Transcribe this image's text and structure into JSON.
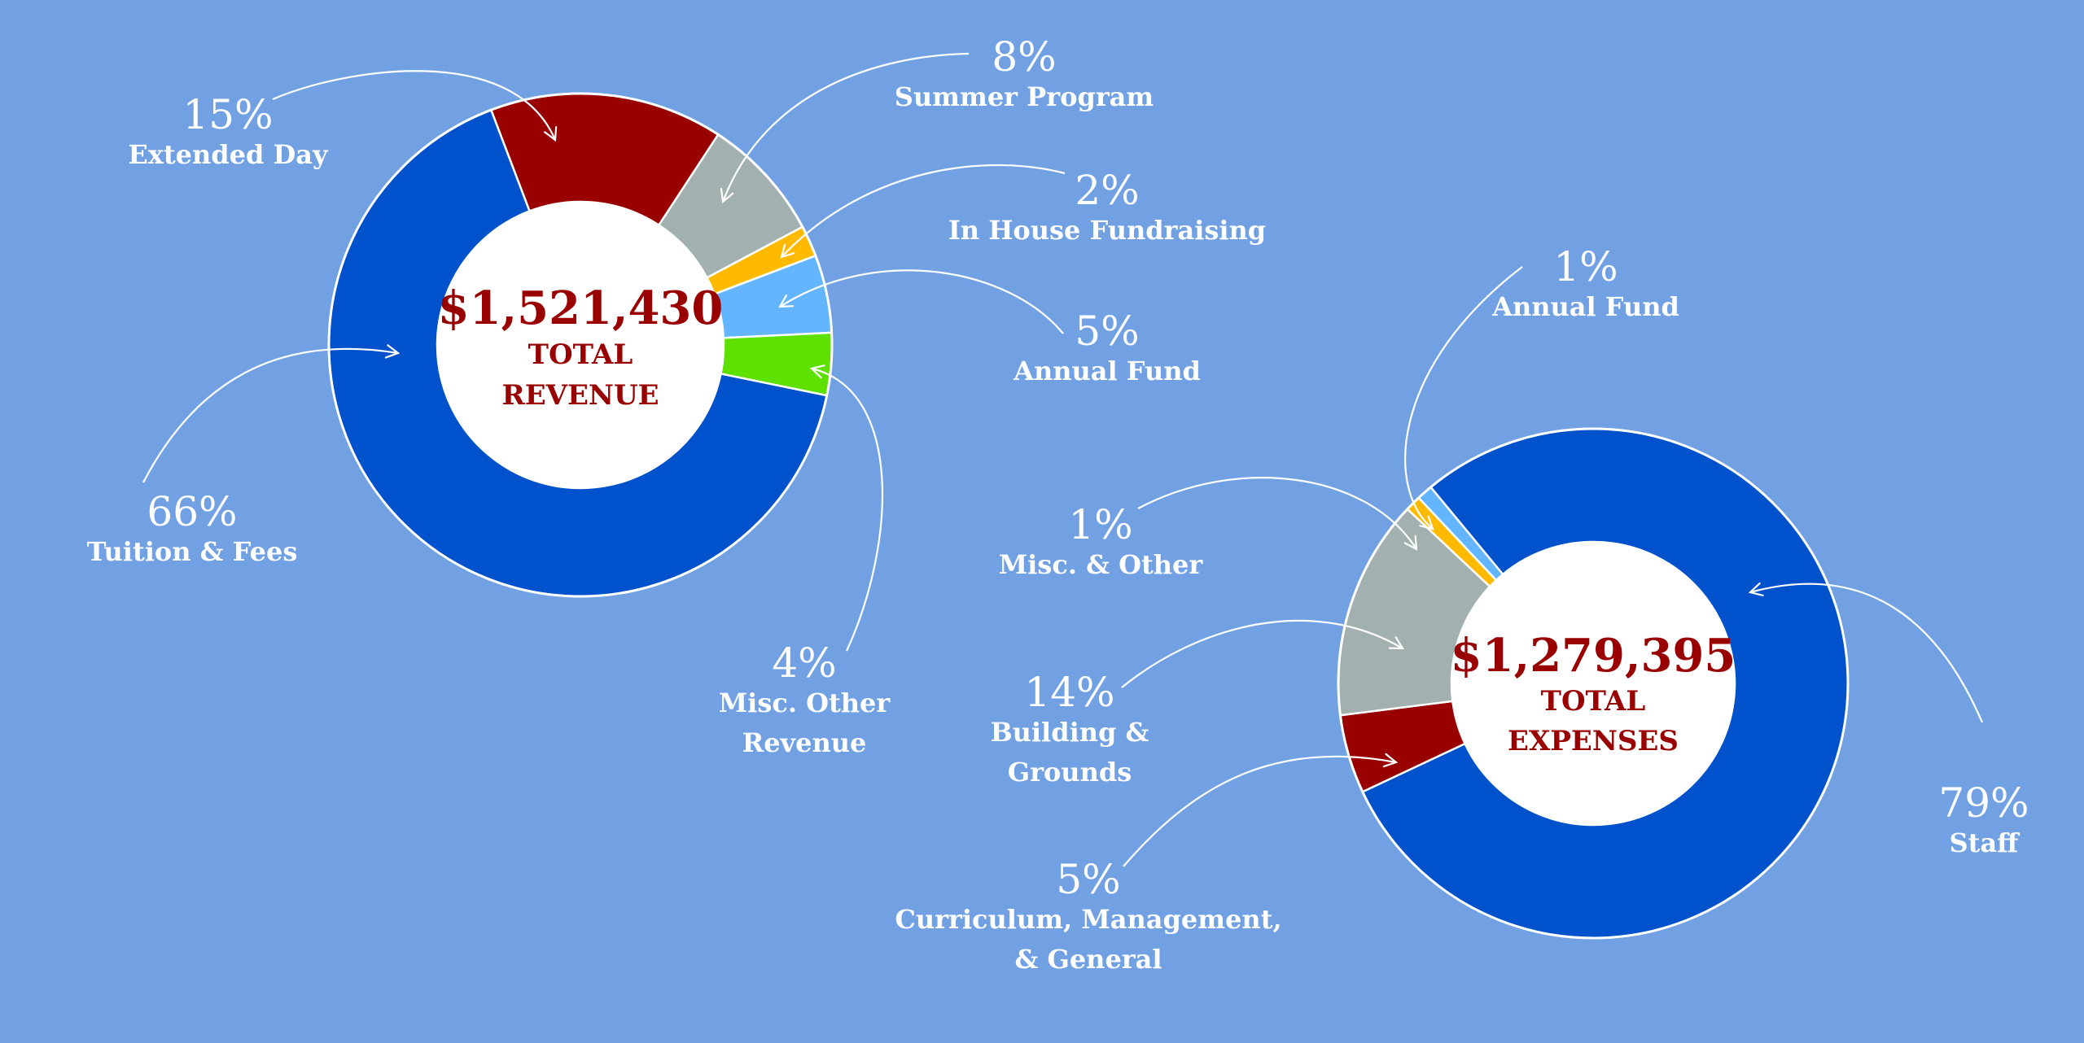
{
  "chart_data": [
    {
      "type": "pie",
      "center_value": "$1,521,430",
      "center_label": [
        "TOTAL",
        "REVENUE"
      ],
      "slices": [
        {
          "label": "Extended Day",
          "label_lines": [
            "Extended Day"
          ],
          "percent_label": "15%",
          "value": 15,
          "color": "#990000"
        },
        {
          "label": "Summer Program",
          "label_lines": [
            "Summer Program"
          ],
          "percent_label": "8%",
          "value": 8,
          "color": "#a2b1b0"
        },
        {
          "label": "In House Fundraising",
          "label_lines": [
            "In House Fundraising"
          ],
          "percent_label": "2%",
          "value": 2,
          "color": "#ffba00"
        },
        {
          "label": "Annual Fund",
          "label_lines": [
            "Annual Fund"
          ],
          "percent_label": "5%",
          "value": 5,
          "color": "#63b5ff"
        },
        {
          "label": "Misc. Other Revenue",
          "label_lines": [
            "Misc. Other",
            "Revenue"
          ],
          "percent_label": "4%",
          "value": 4,
          "color": "#5ee000"
        },
        {
          "label": "Tuition & Fees",
          "label_lines": [
            "Tuition & Fees"
          ],
          "percent_label": "66%",
          "value": 66,
          "color": "#0052cc"
        }
      ]
    },
    {
      "type": "pie",
      "center_value": "$1,279,395",
      "center_label": [
        "TOTAL",
        "EXPENSES"
      ],
      "slices": [
        {
          "label": "Staff",
          "label_lines": [
            "Staff"
          ],
          "percent_label": "79%",
          "value": 79,
          "color": "#0052cc"
        },
        {
          "label": "Curriculum, Management, & General",
          "label_lines": [
            "Curriculum, Management,",
            "& General"
          ],
          "percent_label": "5%",
          "value": 5,
          "color": "#990000"
        },
        {
          "label": "Building & Grounds",
          "label_lines": [
            "Building &",
            "Grounds"
          ],
          "percent_label": "14%",
          "value": 14,
          "color": "#a2b1b0"
        },
        {
          "label": "Misc. & Other",
          "label_lines": [
            "Misc. & Other"
          ],
          "percent_label": "1%",
          "value": 1,
          "color": "#ffba00"
        },
        {
          "label": "Annual Fund",
          "label_lines": [
            "Annual Fund"
          ],
          "percent_label": "1%",
          "value": 1,
          "color": "#63b5ff"
        }
      ]
    }
  ]
}
